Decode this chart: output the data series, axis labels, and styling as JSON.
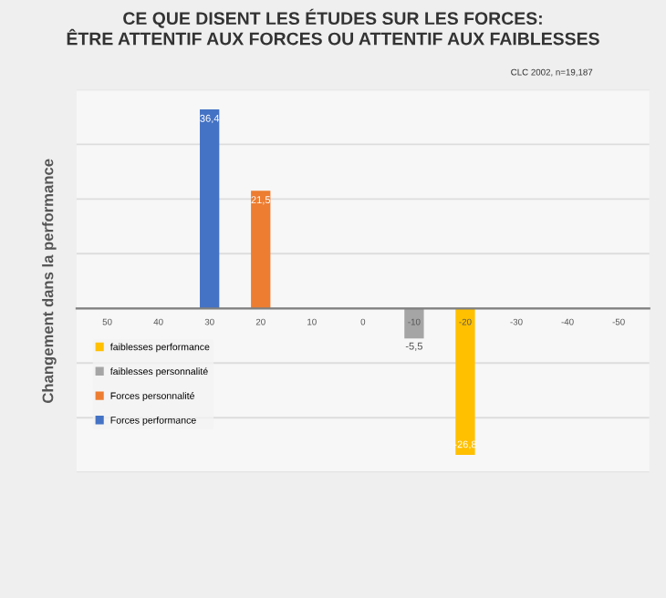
{
  "chart_data": {
    "type": "bar",
    "title": "CE QUE DISENT LES ÉTUDES SUR LES FORCES:\nÊTRE ATTENTIF AUX FORCES OU ATTENTIF AUX FAIBLESSES",
    "subtitle": "CLC 2002, n=19,187",
    "ylabel": "Changement dans la performance",
    "categories": [
      "50",
      "40",
      "30",
      "20",
      "10",
      "0",
      "-10",
      "-20",
      "-30",
      "-40",
      "-50"
    ],
    "series": [
      {
        "name": "faiblesses performance",
        "color": "#ffc000",
        "values": [
          null,
          null,
          null,
          null,
          null,
          null,
          null,
          -26.8,
          null,
          null,
          null
        ],
        "value_labels": [
          null,
          null,
          null,
          null,
          null,
          null,
          null,
          "-26,8",
          null,
          null,
          null
        ]
      },
      {
        "name": "faiblesses personnalité",
        "color": "#a5a5a5",
        "values": [
          null,
          null,
          null,
          null,
          null,
          null,
          -5.5,
          null,
          null,
          null,
          null
        ],
        "value_labels": [
          null,
          null,
          null,
          null,
          null,
          null,
          "-5,5",
          null,
          null,
          null,
          null
        ]
      },
      {
        "name": "Forces personnalité",
        "color": "#ed7d31",
        "values": [
          null,
          null,
          null,
          21.5,
          null,
          null,
          null,
          null,
          null,
          null,
          null
        ],
        "value_labels": [
          null,
          null,
          null,
          "21,5",
          null,
          null,
          null,
          null,
          null,
          null,
          null
        ]
      },
      {
        "name": "Forces performance",
        "color": "#4472c4",
        "values": [
          null,
          null,
          36.4,
          null,
          null,
          null,
          null,
          null,
          null,
          null,
          null
        ],
        "value_labels": [
          null,
          null,
          "36,4",
          null,
          null,
          null,
          null,
          null,
          null,
          null,
          null
        ]
      }
    ],
    "ylim": [
      -30,
      40
    ],
    "yticks": [
      {
        "value": -30,
        "label": null
      },
      {
        "value": -20,
        "label": null
      },
      {
        "value": -10,
        "label": null
      },
      {
        "value": 0,
        "label": null
      },
      {
        "value": 10,
        "label": null
      },
      {
        "value": 20,
        "label": null
      },
      {
        "value": 30,
        "label": null
      },
      {
        "value": 40,
        "label": null
      }
    ],
    "tick_labels": "x",
    "grid": "y",
    "legend": "bottom left"
  }
}
